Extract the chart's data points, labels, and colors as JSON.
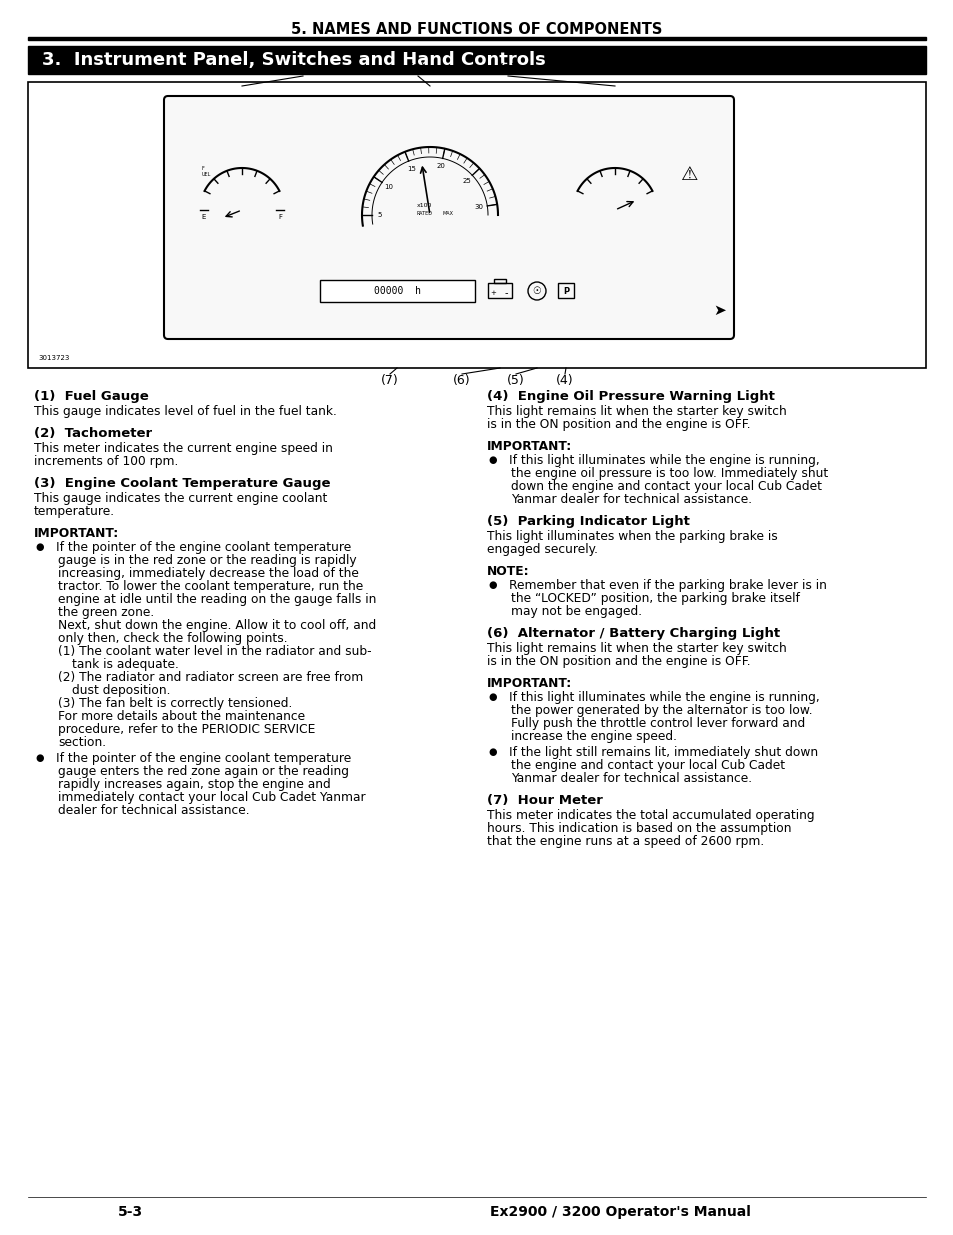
{
  "page_title": "5. NAMES AND FUNCTIONS OF COMPONENTS",
  "section_header": "3.  Instrument Panel, Switches and Hand Controls",
  "footer_left": "5-3",
  "footer_right": "Ex2900 / 3200 Operator's Manual",
  "left_col_items": [
    {
      "type": "heading",
      "text": "(1)  Fuel Gauge"
    },
    {
      "type": "body",
      "text": "This gauge indicates level of fuel in the fuel tank."
    },
    {
      "type": "spacer"
    },
    {
      "type": "heading",
      "text": "(2)  Tachometer"
    },
    {
      "type": "body",
      "text": "This meter indicates the current engine speed in increments of 100 rpm."
    },
    {
      "type": "spacer"
    },
    {
      "type": "heading",
      "text": "(3)  Engine Coolant Temperature Gauge"
    },
    {
      "type": "body",
      "text": "This gauge indicates the current engine coolant temperature."
    },
    {
      "type": "spacer"
    },
    {
      "type": "bold",
      "text": "IMPORTANT:"
    },
    {
      "type": "bullet",
      "lines": [
        "If the pointer of the engine coolant temperature",
        "gauge is in the red zone or the reading is rapidly",
        "increasing, immediately decrease the load of the",
        "tractor. To lower the coolant temperature, run the",
        "engine at idle until the reading on the gauge falls in",
        "the green zone.",
        "Next, shut down the engine. Allow it to cool off, and",
        "only then, check the following points.",
        "(1) The coolant water level in the radiator and sub-",
        "    tank is adequate.",
        "(2) The radiator and radiator screen are free from",
        "    dust deposition.",
        "(3) The fan belt is correctly tensioned.",
        "For more details about the maintenance",
        "procedure, refer to the PERIODIC SERVICE",
        "section."
      ]
    },
    {
      "type": "bullet",
      "lines": [
        "If the pointer of the engine coolant temperature",
        "gauge enters the red zone again or the reading",
        "rapidly increases again, stop the engine and",
        "immediately contact your local Cub Cadet Yanmar",
        "dealer for technical assistance."
      ]
    }
  ],
  "right_col_items": [
    {
      "type": "heading",
      "text": "(4)  Engine Oil Pressure Warning Light"
    },
    {
      "type": "body",
      "text": "This light remains lit when the starter key switch is in the ON position and the engine is OFF."
    },
    {
      "type": "spacer"
    },
    {
      "type": "bold",
      "text": "IMPORTANT:"
    },
    {
      "type": "bullet",
      "lines": [
        "If this light illuminates while the engine is running,",
        "the engine oil pressure is too low. Immediately shut",
        "down the engine and contact your local Cub Cadet",
        "Yanmar dealer for technical assistance."
      ]
    },
    {
      "type": "spacer"
    },
    {
      "type": "heading",
      "text": "(5)  Parking Indicator Light"
    },
    {
      "type": "body",
      "text": "This light illuminates when the parking brake is engaged securely."
    },
    {
      "type": "spacer"
    },
    {
      "type": "bold",
      "text": "NOTE:"
    },
    {
      "type": "bullet",
      "lines": [
        "Remember that even if the parking brake lever is in",
        "the “LOCKED” position, the parking brake itself",
        "may not be engaged."
      ]
    },
    {
      "type": "spacer"
    },
    {
      "type": "heading",
      "text": "(6)  Alternator / Battery Charging Light"
    },
    {
      "type": "body",
      "text": "This light remains lit when the starter key switch is in the ON position and the engine is OFF."
    },
    {
      "type": "spacer"
    },
    {
      "type": "bold",
      "text": "IMPORTANT:"
    },
    {
      "type": "bullet",
      "lines": [
        "If this light illuminates while the engine is running,",
        "the power generated by the alternator is too low.",
        "Fully push the throttle control lever forward and",
        "increase the engine speed."
      ]
    },
    {
      "type": "bullet",
      "lines": [
        "If the light still remains lit, immediately shut down",
        "the engine and contact your local Cub Cadet",
        "Yanmar dealer for technical assistance."
      ]
    },
    {
      "type": "spacer"
    },
    {
      "type": "heading",
      "text": "(7)  Hour Meter"
    },
    {
      "type": "body",
      "text": "This meter indicates the total accumulated operating hours. This indication is based on the assumption that the engine runs at a speed of 2600 rpm."
    }
  ]
}
